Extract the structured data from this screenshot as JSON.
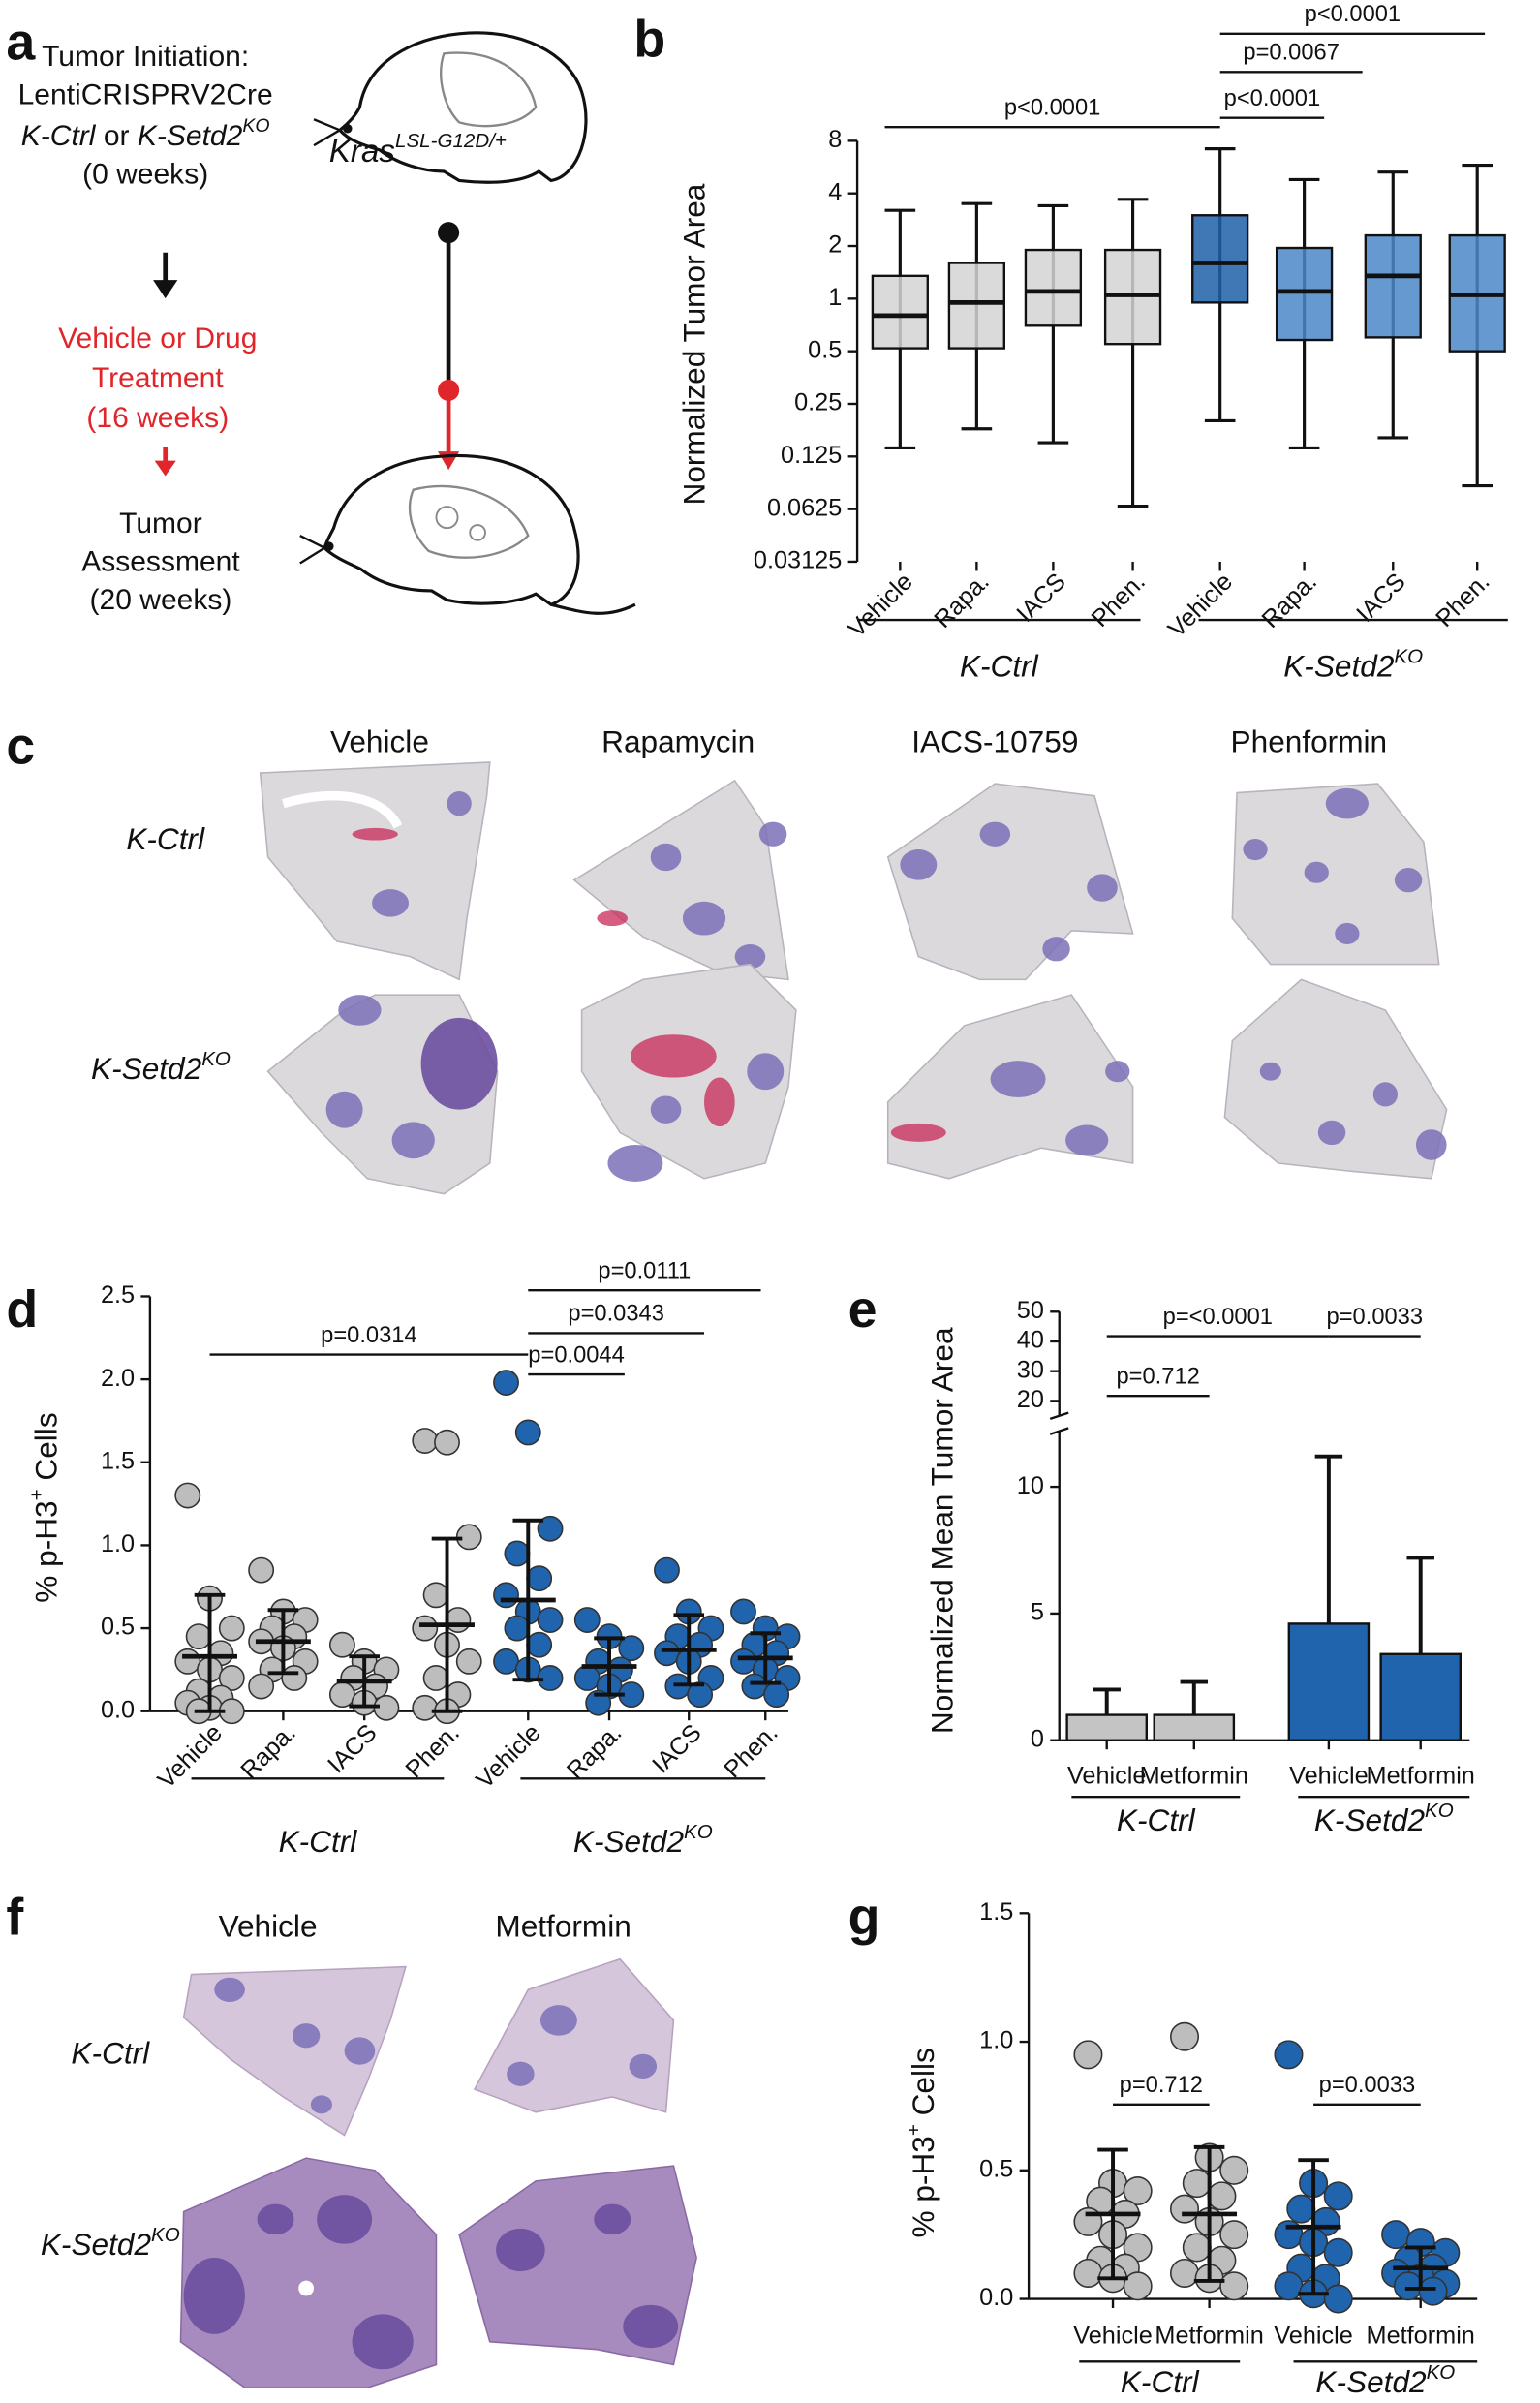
{
  "panel_labels": [
    "a",
    "b",
    "c",
    "d",
    "e",
    "f",
    "g"
  ],
  "a": {
    "initiation": [
      "Tumor Initiation:",
      "LentiCRISPRV2Cre"
    ],
    "groups_line": [
      "K-Ctrl",
      " or ",
      "K-Setd2",
      "KO"
    ],
    "initiation_time": "(0 weeks)",
    "treatment": [
      "Vehicle or Drug",
      "Treatment",
      "(16 weeks)"
    ],
    "assessment": [
      "Tumor",
      "Assessment",
      "(20 weeks)"
    ],
    "mouse_label": [
      "Kras",
      "LSL-G12D/+"
    ]
  },
  "c": {
    "columns": [
      "Vehicle",
      "Rapamycin",
      "IACS-10759",
      "Phenformin"
    ],
    "rows": [
      [
        "K-Ctrl"
      ],
      [
        "K-Setd2",
        "KO"
      ]
    ]
  },
  "f": {
    "columns": [
      "Vehicle",
      "Metformin"
    ],
    "rows": [
      [
        "K-Ctrl"
      ],
      [
        "K-Setd2",
        "KO"
      ]
    ]
  },
  "chart_data": [
    {
      "type": "box",
      "ylabel": "Normalized Tumor Area",
      "categories": [
        "Vehicle",
        "Rapa.",
        "IACS",
        "Phen.",
        "Vehicle",
        "Rapa.",
        "IACS",
        "Phen."
      ],
      "boxes": [
        {
          "min": 0.14,
          "q1": 0.52,
          "median": 0.8,
          "q3": 1.35,
          "max": 3.2
        },
        {
          "min": 0.18,
          "q1": 0.52,
          "median": 0.95,
          "q3": 1.6,
          "max": 3.5
        },
        {
          "min": 0.15,
          "q1": 0.7,
          "median": 1.1,
          "q3": 1.9,
          "max": 3.4
        },
        {
          "min": 0.065,
          "q1": 0.55,
          "median": 1.05,
          "q3": 1.9,
          "max": 3.7
        },
        {
          "min": 0.2,
          "q1": 0.95,
          "median": 1.6,
          "q3": 3.0,
          "max": 7.2
        },
        {
          "min": 0.14,
          "q1": 0.58,
          "median": 1.1,
          "q3": 1.95,
          "max": 4.8
        },
        {
          "min": 0.16,
          "q1": 0.6,
          "median": 1.35,
          "q3": 2.3,
          "max": 5.3
        },
        {
          "min": 0.085,
          "q1": 0.5,
          "median": 1.05,
          "q3": 2.3,
          "max": 5.8
        }
      ],
      "colors": [
        "#d3d3d3",
        "#d3d3d3",
        "#d3d3d3",
        "#d3d3d3",
        "#1f5fa8",
        "#4a87c8",
        "#4a87c8",
        "#4a87c8"
      ],
      "groups": [
        [
          "K-Ctrl"
        ],
        [
          "K-Setd2",
          "KO"
        ]
      ],
      "annotations": [
        "p<0.0001",
        "p<0.0001",
        "p=0.0067",
        "p<0.0001"
      ],
      "log_scale": true,
      "log_base": 2,
      "ylim": [
        0.03125,
        8
      ],
      "yticks": [
        8,
        4,
        2,
        1,
        0.5,
        0.25,
        0.125,
        0.0625,
        0.03125
      ]
    },
    {
      "type": "dot",
      "ylabel": [
        "% p-H3",
        "+",
        " Cells"
      ],
      "categories": [
        "Vehicle",
        "Rapa.",
        "IACS",
        "Phen.",
        "Vehicle",
        "Rapa.",
        "IACS",
        "Phen."
      ],
      "means": [
        0.33,
        0.42,
        0.18,
        0.52,
        0.67,
        0.27,
        0.37,
        0.32
      ],
      "sds": [
        0.37,
        0.19,
        0.15,
        0.52,
        0.48,
        0.17,
        0.21,
        0.15
      ],
      "points": [
        [
          1.3,
          0.68,
          0.5,
          0.45,
          0.35,
          0.3,
          0.25,
          0.2,
          0.12,
          0.08,
          0.05,
          0.02,
          0.0,
          0.0
        ],
        [
          0.85,
          0.6,
          0.55,
          0.5,
          0.45,
          0.42,
          0.38,
          0.3,
          0.25,
          0.2,
          0.15
        ],
        [
          0.4,
          0.3,
          0.25,
          0.2,
          0.15,
          0.1,
          0.05,
          0.02
        ],
        [
          1.63,
          1.62,
          1.05,
          0.7,
          0.55,
          0.5,
          0.4,
          0.3,
          0.2,
          0.1,
          0.02,
          0.0
        ],
        [
          1.98,
          1.68,
          1.1,
          0.95,
          0.8,
          0.7,
          0.6,
          0.55,
          0.5,
          0.4,
          0.3,
          0.25,
          0.2
        ],
        [
          0.55,
          0.45,
          0.38,
          0.3,
          0.25,
          0.2,
          0.15,
          0.1,
          0.05
        ],
        [
          0.85,
          0.6,
          0.5,
          0.45,
          0.4,
          0.35,
          0.3,
          0.2,
          0.15,
          0.1
        ],
        [
          0.6,
          0.5,
          0.45,
          0.4,
          0.35,
          0.3,
          0.25,
          0.2,
          0.15,
          0.1
        ]
      ],
      "colors": [
        "#bdbdbd",
        "#bdbdbd",
        "#bdbdbd",
        "#bdbdbd",
        "#1f64ad",
        "#1f64ad",
        "#1f64ad",
        "#1f64ad"
      ],
      "groups": [
        [
          "K-Ctrl"
        ],
        [
          "K-Setd2",
          "KO"
        ]
      ],
      "annotations": [
        "p=0.0314",
        "p=0.0044",
        "p=0.0343",
        "p=0.0111"
      ],
      "ylim": [
        0,
        2.5
      ],
      "yticks": [
        {
          "value": 0,
          "label": "0.0"
        },
        0.5,
        {
          "value": 1,
          "label": "1.0"
        },
        1.5,
        {
          "value": 2,
          "label": "2.0"
        },
        2.5
      ]
    },
    {
      "type": "bar",
      "ylabel": "Normalized Mean Tumor Area",
      "categories": [
        "Vehicle",
        "Metformin",
        "Vehicle",
        "Metformin"
      ],
      "values": [
        1.0,
        1.0,
        4.6,
        3.4
      ],
      "errors": [
        1.0,
        1.3,
        6.6,
        3.8
      ],
      "colors": [
        "#c4c4c4",
        "#c4c4c4",
        "#1f64ad",
        "#1f64ad"
      ],
      "groups": [
        [
          "K-Ctrl"
        ],
        [
          "K-Setd2",
          "KO"
        ]
      ],
      "annotations": [
        "p=<0.0001",
        "p=0.712",
        "p=0.0033"
      ],
      "ylim": [
        0,
        12.2
      ],
      "yticks": [
        0,
        5,
        10
      ],
      "ybreak_lim": [
        15,
        50
      ],
      "ybreak_ticks": [
        20,
        30,
        40,
        50
      ]
    },
    {
      "type": "dot",
      "ylabel": [
        "% p-H3",
        "+",
        " Cells"
      ],
      "categories": [
        "Vehicle",
        "Metformin",
        "Vehicle",
        "Metformin"
      ],
      "means": [
        0.33,
        0.33,
        0.28,
        0.12
      ],
      "sds": [
        0.25,
        0.26,
        0.26,
        0.08
      ],
      "points": [
        [
          0.95,
          0.45,
          0.42,
          0.38,
          0.33,
          0.3,
          0.25,
          0.2,
          0.15,
          0.12,
          0.1,
          0.08,
          0.05
        ],
        [
          1.02,
          0.55,
          0.5,
          0.45,
          0.4,
          0.35,
          0.3,
          0.25,
          0.2,
          0.15,
          0.1,
          0.08,
          0.05
        ],
        [
          0.95,
          0.45,
          0.4,
          0.35,
          0.3,
          0.25,
          0.22,
          0.18,
          0.12,
          0.08,
          0.05,
          0.02,
          0.0
        ],
        [
          0.25,
          0.22,
          0.18,
          0.15,
          0.12,
          0.1,
          0.08,
          0.06,
          0.05,
          0.03
        ]
      ],
      "colors": [
        "#bdbdbd",
        "#bdbdbd",
        "#1f64ad",
        "#1f64ad"
      ],
      "groups": [
        [
          "K-Ctrl"
        ],
        [
          "K-Setd2",
          "KO"
        ]
      ],
      "annotations": [
        "p=0.712",
        "p=0.0033"
      ],
      "ylim": [
        0,
        1.5
      ],
      "yticks": [
        {
          "value": 0,
          "label": "0.0"
        },
        0.5,
        {
          "value": 1,
          "label": "1.0"
        },
        1.5
      ]
    }
  ]
}
